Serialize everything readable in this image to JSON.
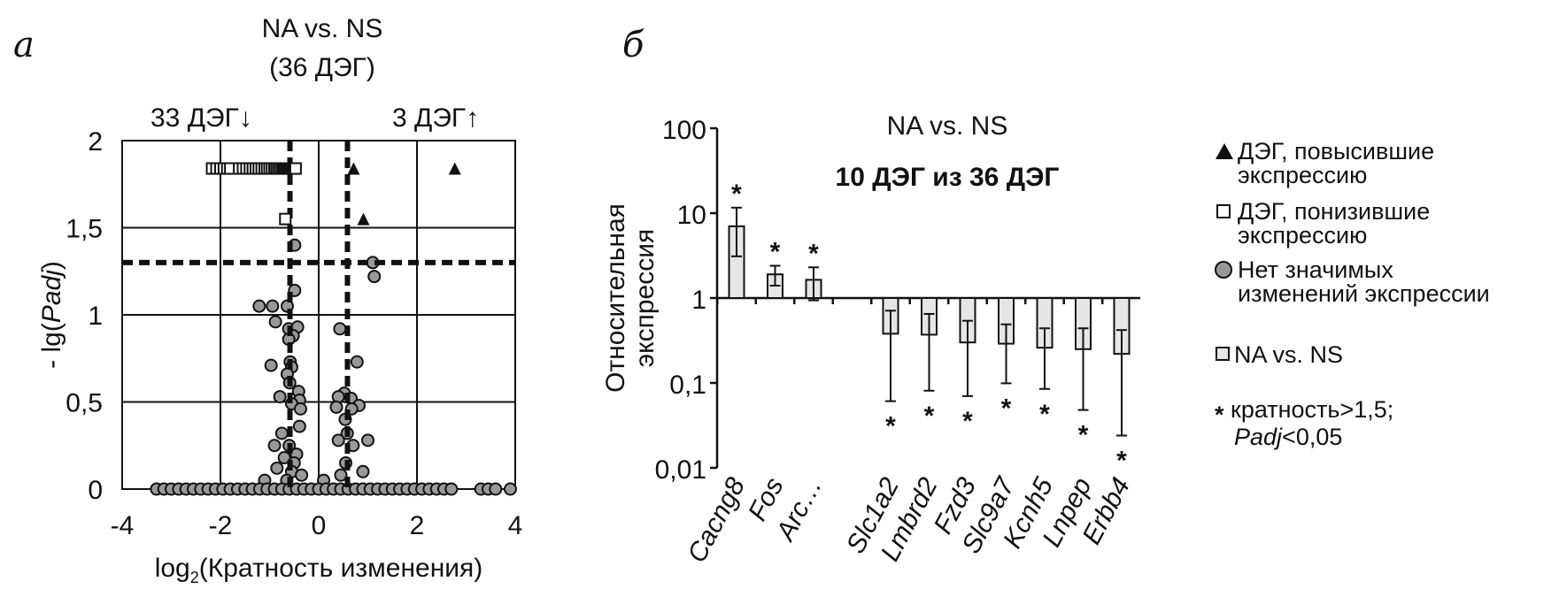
{
  "panel_a": {
    "letter": "а",
    "title": "NA vs. NS",
    "subtitle": "(36 ДЭГ)",
    "down_label": "33 ДЭГ↓",
    "up_label": "3 ДЭГ↑"
  },
  "panel_b": {
    "letter": "б",
    "title": "NA vs. NS",
    "subtitle": "10 ДЭГ из 36 ДЭГ"
  },
  "legend": {
    "up": [
      "ДЭГ, повысившие",
      "экспрессию"
    ],
    "down": [
      "ДЭГ, понизившие",
      "экспрессию"
    ],
    "ns": [
      "Нет значимых",
      "изменений экспрессии"
    ],
    "series": "NA vs. NS",
    "star": [
      "кратность>1,5;",
      "Padj<0,05"
    ]
  },
  "chart_data": [
    {
      "type": "scatter",
      "title": "NA vs. NS",
      "xlabel": "log2(Кратность изменения)",
      "ylabel": "- lg(Padj)",
      "xlim": [
        -4,
        4
      ],
      "ylim": [
        0,
        2
      ],
      "xticks": [
        "-4",
        "-2",
        "0",
        "2",
        "4"
      ],
      "yticks": [
        "0",
        "0,5",
        "1",
        "1,5",
        "2"
      ],
      "grid": true,
      "thresholds": {
        "log2fc": [
          -0.585,
          0.585
        ],
        "neg_lg_padj": 1.3
      },
      "colors": {
        "ns": "#999999",
        "edge": "#111111"
      },
      "series": [
        {
          "name": "ДЭГ, повысившие экспрессию",
          "marker": "triangle",
          "points": [
            [
              0.71,
              1.84
            ],
            [
              2.77,
              1.84
            ],
            [
              0.91,
              1.55
            ]
          ]
        },
        {
          "name": "ДЭГ, понизившие экспрессию",
          "marker": "square",
          "points": [
            [
              -2.17,
              1.84
            ],
            [
              -2.08,
              1.84
            ],
            [
              -2.0,
              1.84
            ],
            [
              -1.93,
              1.84
            ],
            [
              -1.86,
              1.84
            ],
            [
              -1.8,
              1.84
            ],
            [
              -1.62,
              1.84
            ],
            [
              -1.54,
              1.84
            ],
            [
              -1.47,
              1.84
            ],
            [
              -1.4,
              1.84
            ],
            [
              -1.34,
              1.84
            ],
            [
              -1.28,
              1.84
            ],
            [
              -1.22,
              1.84
            ],
            [
              -1.16,
              1.84
            ],
            [
              -1.1,
              1.84
            ],
            [
              -1.05,
              1.84
            ],
            [
              -1.0,
              1.84
            ],
            [
              -0.95,
              1.84
            ],
            [
              -0.9,
              1.84
            ],
            [
              -0.86,
              1.84
            ],
            [
              -0.82,
              1.84
            ],
            [
              -0.78,
              1.84
            ],
            [
              -0.74,
              1.84
            ],
            [
              -0.71,
              1.84
            ],
            [
              -0.68,
              1.84
            ],
            [
              -0.65,
              1.84
            ],
            [
              -0.62,
              1.84
            ],
            [
              -0.59,
              1.84
            ],
            [
              -0.56,
              1.84
            ],
            [
              -0.53,
              1.84
            ],
            [
              -0.5,
              1.84
            ],
            [
              -0.47,
              1.84
            ],
            [
              -0.68,
              1.55
            ]
          ]
        },
        {
          "name": "Нет значимых изменений экспрессии",
          "marker": "circle",
          "points": [
            [
              -0.49,
              1.4
            ],
            [
              -0.49,
              1.14
            ],
            [
              -1.21,
              1.05
            ],
            [
              -0.94,
              1.05
            ],
            [
              -0.64,
              1.05
            ],
            [
              -0.88,
              0.96
            ],
            [
              -0.61,
              0.92
            ],
            [
              -0.43,
              0.93
            ],
            [
              -0.52,
              0.88
            ],
            [
              -0.61,
              0.86
            ],
            [
              -0.97,
              0.71
            ],
            [
              -0.58,
              0.73
            ],
            [
              -0.55,
              0.7
            ],
            [
              -0.64,
              0.66
            ],
            [
              -0.59,
              0.61
            ],
            [
              -0.79,
              0.53
            ],
            [
              -0.41,
              0.56
            ],
            [
              -0.39,
              0.51
            ],
            [
              -0.55,
              0.49
            ],
            [
              -0.37,
              0.46
            ],
            [
              -0.39,
              0.36
            ],
            [
              -0.75,
              0.32
            ],
            [
              1.1,
              1.3
            ],
            [
              1.13,
              1.22
            ],
            [
              0.43,
              0.92
            ],
            [
              0.78,
              0.73
            ],
            [
              0.52,
              0.55
            ],
            [
              0.4,
              0.53
            ],
            [
              0.66,
              0.52
            ],
            [
              0.82,
              0.48
            ],
            [
              0.36,
              0.47
            ],
            [
              0.67,
              0.46
            ],
            [
              0.54,
              0.4
            ],
            [
              0.58,
              0.32
            ],
            [
              -0.9,
              0.25
            ],
            [
              -0.6,
              0.25
            ],
            [
              -0.45,
              0.2
            ],
            [
              -0.7,
              0.18
            ],
            [
              -0.5,
              0.15
            ],
            [
              -0.85,
              0.12
            ],
            [
              -0.55,
              0.1
            ],
            [
              -0.35,
              0.08
            ],
            [
              -0.65,
              0.05
            ],
            [
              -1.1,
              0.05
            ],
            [
              0.4,
              0.28
            ],
            [
              0.7,
              0.25
            ],
            [
              0.55,
              0.15
            ],
            [
              0.9,
              0.1
            ],
            [
              0.45,
              0.08
            ],
            [
              0.1,
              0.05
            ],
            [
              1.0,
              0.28
            ],
            [
              -3.3,
              0
            ],
            [
              -3.15,
              0
            ],
            [
              -3.0,
              0
            ],
            [
              -2.85,
              0
            ],
            [
              -2.7,
              0
            ],
            [
              -2.55,
              0
            ],
            [
              -2.4,
              0
            ],
            [
              -2.25,
              0
            ],
            [
              -2.1,
              0
            ],
            [
              -1.95,
              0
            ],
            [
              -1.8,
              0
            ],
            [
              -1.65,
              0
            ],
            [
              -1.5,
              0
            ],
            [
              -1.35,
              0
            ],
            [
              -1.2,
              0
            ],
            [
              -1.05,
              0
            ],
            [
              -0.9,
              0
            ],
            [
              -0.75,
              0
            ],
            [
              -0.6,
              0
            ],
            [
              -0.45,
              0
            ],
            [
              -0.3,
              0
            ],
            [
              -0.15,
              0
            ],
            [
              0.0,
              0
            ],
            [
              0.15,
              0
            ],
            [
              0.3,
              0
            ],
            [
              0.45,
              0
            ],
            [
              0.6,
              0
            ],
            [
              0.75,
              0
            ],
            [
              0.9,
              0
            ],
            [
              1.05,
              0
            ],
            [
              1.2,
              0
            ],
            [
              1.35,
              0
            ],
            [
              1.5,
              0
            ],
            [
              1.65,
              0
            ],
            [
              1.8,
              0
            ],
            [
              1.95,
              0
            ],
            [
              2.1,
              0
            ],
            [
              2.25,
              0
            ],
            [
              2.4,
              0
            ],
            [
              2.55,
              0
            ],
            [
              2.7,
              0
            ],
            [
              3.3,
              0
            ],
            [
              3.45,
              0
            ],
            [
              3.6,
              0
            ],
            [
              3.9,
              0
            ]
          ]
        }
      ]
    },
    {
      "type": "bar",
      "title": "NA vs. NS",
      "subtitle": "10 ДЭГ из 36 ДЭГ",
      "ylabel": [
        "Относительная",
        "экспрессия"
      ],
      "yscale": "log",
      "ylim": [
        0.01,
        100
      ],
      "yticks": [
        "0,01",
        "0,1",
        "1",
        "10",
        "100"
      ],
      "baseline": 1,
      "categories": [
        "Cacng8",
        "Fos",
        "Arc…",
        "",
        "Slc1a2",
        "Lmbrd2",
        "Fzd3",
        "Slc9a7",
        "Kcnh5",
        "Lnpep",
        "Erbb4"
      ],
      "series": [
        {
          "name": "NA vs. NS",
          "color": "#e6e6e6",
          "values": [
            7.0,
            1.9,
            1.64,
            null,
            0.38,
            0.37,
            0.3,
            0.29,
            0.26,
            0.25,
            0.22
          ],
          "err_high": [
            11.6,
            2.4,
            2.3,
            null,
            0.71,
            0.65,
            0.54,
            0.49,
            0.44,
            0.44,
            0.42
          ],
          "err_low": [
            3.1,
            1.4,
            0.94,
            null,
            0.061,
            0.081,
            0.07,
            0.099,
            0.085,
            0.048,
            0.024
          ],
          "significant": [
            true,
            true,
            true,
            null,
            true,
            true,
            true,
            true,
            true,
            true,
            true
          ]
        }
      ]
    }
  ]
}
